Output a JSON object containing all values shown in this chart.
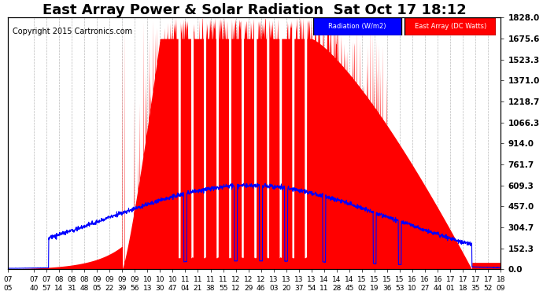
{
  "title": "East Array Power & Solar Radiation  Sat Oct 17 18:12",
  "copyright_text": "Copyright 2015 Cartronics.com",
  "ylabel_right_ticks": [
    0.0,
    152.3,
    304.7,
    457.0,
    609.3,
    761.7,
    914.0,
    1066.3,
    1218.7,
    1371.0,
    1523.3,
    1675.6,
    1828.0
  ],
  "ymax": 1828.0,
  "ymin": 0.0,
  "legend_radiation_label": "Radiation (W/m2)",
  "legend_east_label": "East Array (DC Watts)",
  "legend_radiation_bg": "#0000ff",
  "legend_east_bg": "#ff0000",
  "title_fontsize": 13,
  "copyright_fontsize": 7,
  "bg_color": "#ffffff",
  "plot_bg_color": "#ffffff",
  "grid_color": "#bbbbbb",
  "red_fill_color": "#ff0000",
  "blue_line_color": "#0000ff",
  "x_tick_fontsize": 6.5,
  "y_tick_fontsize": 7.5,
  "x_tick_labels": [
    "07:05",
    "07:40",
    "07:57",
    "08:14",
    "08:31",
    "08:48",
    "09:05",
    "09:22",
    "09:39",
    "09:56",
    "10:13",
    "10:30",
    "10:47",
    "11:04",
    "11:21",
    "11:38",
    "11:55",
    "12:12",
    "12:29",
    "12:46",
    "13:03",
    "13:20",
    "13:37",
    "13:54",
    "14:11",
    "14:28",
    "14:45",
    "15:02",
    "15:19",
    "15:36",
    "15:53",
    "16:10",
    "16:27",
    "16:44",
    "17:01",
    "17:18",
    "17:35",
    "17:52",
    "18:09"
  ]
}
